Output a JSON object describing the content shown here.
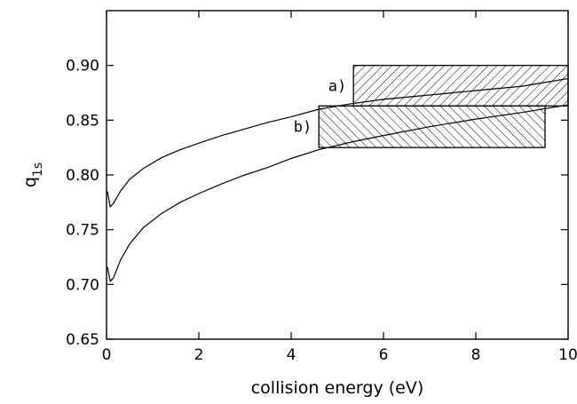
{
  "chart_data": {
    "type": "line",
    "xlabel": "collision energy (eV)",
    "ylabel": "q",
    "ylabel_subscript": "1s",
    "xlim": [
      0,
      10
    ],
    "ylim": [
      0.65,
      0.95
    ],
    "x_ticks": [
      0,
      2,
      4,
      6,
      8,
      10
    ],
    "x_tick_labels": [
      "0",
      "2",
      "4",
      "6",
      "8",
      "10"
    ],
    "y_ticks": [
      0.65,
      0.7,
      0.75,
      0.8,
      0.85,
      0.9
    ],
    "y_tick_labels": [
      "0.65",
      "0.70",
      "0.75",
      "0.80",
      "0.85",
      "0.90"
    ],
    "grid": false,
    "series": [
      {
        "x": [
          0.02,
          0.08,
          0.15,
          0.3,
          0.5,
          0.8,
          1.2,
          1.6,
          2.0,
          2.5,
          3.0,
          3.5,
          4.0,
          4.6,
          5.3,
          6.0,
          7.0,
          8.0,
          9.0,
          10.0
        ],
        "y": [
          0.785,
          0.771,
          0.774,
          0.785,
          0.796,
          0.806,
          0.816,
          0.823,
          0.829,
          0.836,
          0.842,
          0.848,
          0.853,
          0.86,
          0.865,
          0.869,
          0.873,
          0.877,
          0.881,
          0.888
        ]
      },
      {
        "x": [
          0.02,
          0.08,
          0.15,
          0.3,
          0.5,
          0.8,
          1.2,
          1.6,
          2.0,
          2.5,
          3.0,
          3.5,
          4.0,
          4.6,
          5.3,
          6.0,
          7.0,
          8.0,
          9.0,
          10.0
        ],
        "y": [
          0.716,
          0.703,
          0.706,
          0.722,
          0.737,
          0.752,
          0.765,
          0.775,
          0.783,
          0.792,
          0.8,
          0.807,
          0.815,
          0.823,
          0.83,
          0.836,
          0.844,
          0.851,
          0.857,
          0.864
        ]
      }
    ],
    "regions": [
      {
        "label": "a)",
        "x": [
          5.35,
          10.0
        ],
        "y": [
          0.863,
          0.9
        ],
        "hatch": "forward"
      },
      {
        "label": "b)",
        "x": [
          4.6,
          9.5
        ],
        "y": [
          0.825,
          0.863
        ],
        "hatch": "backward"
      }
    ]
  }
}
